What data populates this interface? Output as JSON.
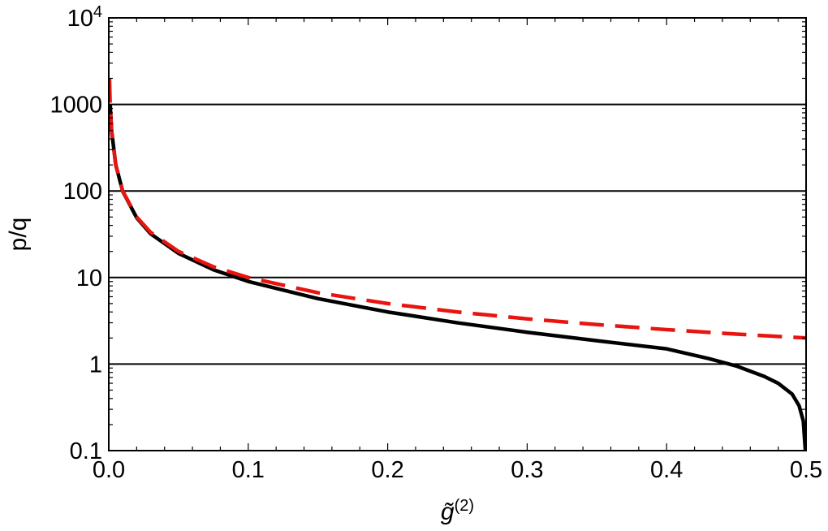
{
  "chart_data": {
    "type": "line",
    "title": "",
    "xlabel": "g̃",
    "xlabel_superscript": "(2)",
    "ylabel": "p/q",
    "xlim": [
      0.0,
      0.5
    ],
    "ylim": [
      0.1,
      10000
    ],
    "yscale": "log",
    "grid": "horizontal lines at y = 1, 10, 100, 1000",
    "x_ticks": [
      "0.0",
      "0.1",
      "0.2",
      "0.3",
      "0.4",
      "0.5"
    ],
    "y_ticks": [
      {
        "value": 0.1,
        "label": "0.1"
      },
      {
        "value": 1,
        "label": "1"
      },
      {
        "value": 10,
        "label": "10"
      },
      {
        "value": 100,
        "label": "100"
      },
      {
        "value": 1000,
        "label": "1000"
      },
      {
        "value": 10000,
        "label": "10",
        "exponent": "4"
      }
    ],
    "series": [
      {
        "style": "solid",
        "color": "#000000",
        "x": [
          0.001,
          0.002,
          0.005,
          0.01,
          0.02,
          0.03,
          0.05,
          0.075,
          0.1,
          0.15,
          0.2,
          0.25,
          0.3,
          0.35,
          0.4,
          0.43,
          0.45,
          0.47,
          0.48,
          0.49,
          0.495,
          0.498,
          0.4995
        ],
        "y": [
          1000,
          500,
          200,
          99,
          49,
          32,
          19,
          12.3,
          9.0,
          5.7,
          4.0,
          3.0,
          2.33,
          1.86,
          1.5,
          1.16,
          0.95,
          0.72,
          0.6,
          0.45,
          0.33,
          0.22,
          0.1
        ]
      },
      {
        "style": "dashed",
        "color": "#e8140f",
        "x": [
          0.0005,
          0.001,
          0.002,
          0.005,
          0.01,
          0.02,
          0.03,
          0.05,
          0.075,
          0.1,
          0.15,
          0.2,
          0.25,
          0.3,
          0.35,
          0.4,
          0.45,
          0.5
        ],
        "y": [
          2000,
          1000,
          500,
          200,
          100,
          50,
          33.3,
          20,
          13.3,
          10,
          6.67,
          5,
          4,
          3.33,
          2.86,
          2.5,
          2.22,
          2.0
        ]
      }
    ]
  }
}
